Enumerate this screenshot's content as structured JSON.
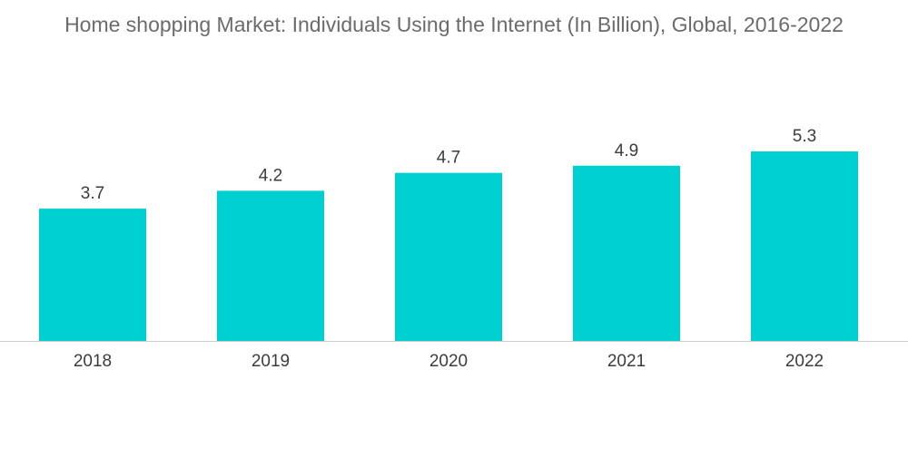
{
  "chart_data": {
    "type": "bar",
    "title": "Home shopping Market: Individuals Using the Internet (In Billion), Global, 2016-2022",
    "xlabel": "",
    "ylabel": "",
    "categories": [
      "2018",
      "2019",
      "2020",
      "2021",
      "2022"
    ],
    "values": [
      3.7,
      4.2,
      4.7,
      4.9,
      5.3
    ],
    "data_labels": [
      "3.7",
      "4.2",
      "4.7",
      "4.9",
      "5.3"
    ],
    "ylim": [
      0,
      5.3
    ],
    "grid": false,
    "legend": "none",
    "bar_color": "#00cfd2",
    "axis_color": "#cccccc"
  }
}
